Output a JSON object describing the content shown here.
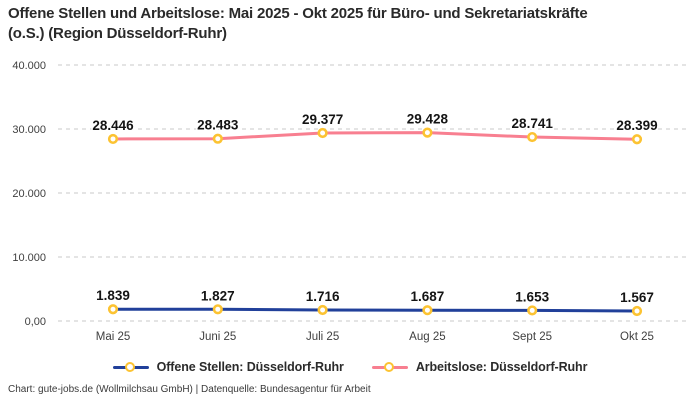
{
  "title": "Offene Stellen und Arbeitslose: Mai 2025 - Okt 2025 für Büro- und Sekretariatskräfte (o.S.) (Region Düsseldorf-Ruhr)",
  "footer": "Chart: gute-jobs.de (Wollmilchsau GmbH) | Datenquelle: Bundesagentur für Arbeit",
  "colors": {
    "open_positions_line": "#21409a",
    "unemployed_line": "#f87f90",
    "marker_ring": "#fcc332",
    "marker_fill": "#ffffff",
    "gridline": "#c8c8c8",
    "axis_text": "#3f3f3f",
    "data_label_text": "#141414"
  },
  "legend": {
    "items": [
      {
        "label": "Offene Stellen: Düsseldorf-Ruhr"
      },
      {
        "label": "Arbeitslose: Düsseldorf-Ruhr"
      }
    ]
  },
  "chart_data": {
    "type": "line",
    "title": "Offene Stellen und Arbeitslose: Mai 2025 - Okt 2025 für Büro- und Sekretariatskräfte (o.S.) (Region Düsseldorf-Ruhr)",
    "categories": [
      "Mai 25",
      "Juni 25",
      "Juli 25",
      "Aug 25",
      "Sept 25",
      "Okt 25"
    ],
    "series": [
      {
        "name": "Offene Stellen: Düsseldorf-Ruhr",
        "color": "#21409a",
        "values": [
          1839,
          1827,
          1716,
          1687,
          1653,
          1567
        ],
        "labels": [
          "1.839",
          "1.827",
          "1.716",
          "1.687",
          "1.653",
          "1.567"
        ]
      },
      {
        "name": "Arbeitslose: Düsseldorf-Ruhr",
        "color": "#f87f90",
        "values": [
          28446,
          28483,
          29377,
          29428,
          28741,
          28399
        ],
        "labels": [
          "28.446",
          "28.483",
          "29.377",
          "29.428",
          "28.741",
          "28.399"
        ]
      }
    ],
    "y_ticks": [
      {
        "value": 0,
        "label": "0,00"
      },
      {
        "value": 10000,
        "label": "10.000"
      },
      {
        "value": 20000,
        "label": "20.000"
      },
      {
        "value": 30000,
        "label": "30.000"
      },
      {
        "value": 40000,
        "label": "40.000"
      }
    ],
    "ylim": [
      0,
      40000
    ],
    "grid": "dashed-horizontal",
    "legend_position": "bottom"
  }
}
